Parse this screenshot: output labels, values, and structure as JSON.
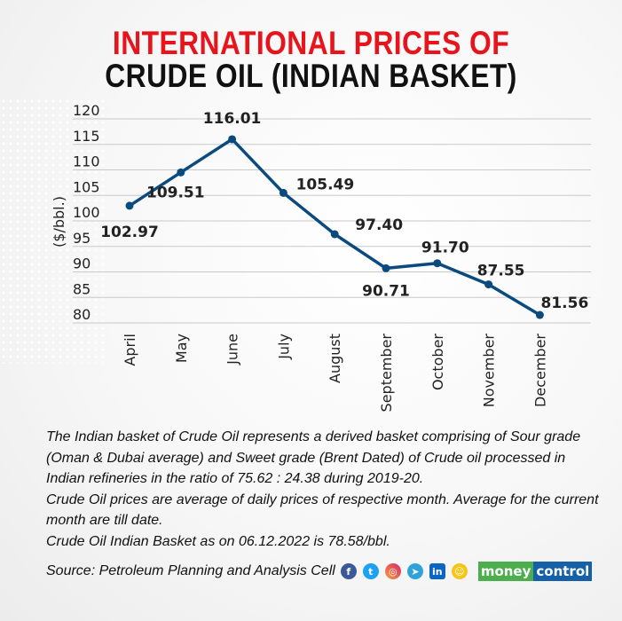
{
  "title_line1": "INTERNATIONAL PRICES OF",
  "title_line2": "CRUDE OIL (INDIAN BASKET)",
  "chart_data": {
    "type": "line",
    "ylabel": "($/bbl.)",
    "ylim": [
      80,
      120
    ],
    "yticks": [
      120,
      115,
      110,
      105,
      100,
      95,
      90,
      85,
      80
    ],
    "grid": true,
    "categories": [
      "April",
      "May",
      "June",
      "July",
      "August",
      "September",
      "October",
      "November",
      "December"
    ],
    "values": [
      102.97,
      109.51,
      116.01,
      105.49,
      97.4,
      90.71,
      91.7,
      87.55,
      81.56
    ],
    "data_labels": [
      "102.97",
      "109.51",
      "116.01",
      "105.49",
      "97.40",
      "90.71",
      "91.70",
      "87.55",
      "81.56"
    ],
    "line_color": "#0b4a7e"
  },
  "notes": [
    "The Indian basket of Crude Oil represents a derived basket comprising of Sour grade (Oman & Dubai average) and Sweet grade (Brent Dated) of Crude oil processed in Indian refineries in the ratio of 75.62 : 24.38 during 2019-20.",
    "Crude Oil prices are average of daily prices of respective month. Average for the current month are till date.",
    "Crude Oil Indian Basket as on 06.12.2022 is 78.58/bbl."
  ],
  "source": "Source: Petroleum Planning and Analysis Cell",
  "social_icons": [
    "facebook-icon",
    "twitter-icon",
    "instagram-icon",
    "telegram-icon",
    "linkedin-icon",
    "snapchat-icon"
  ],
  "logo": {
    "part1": "money",
    "part2": "control"
  }
}
